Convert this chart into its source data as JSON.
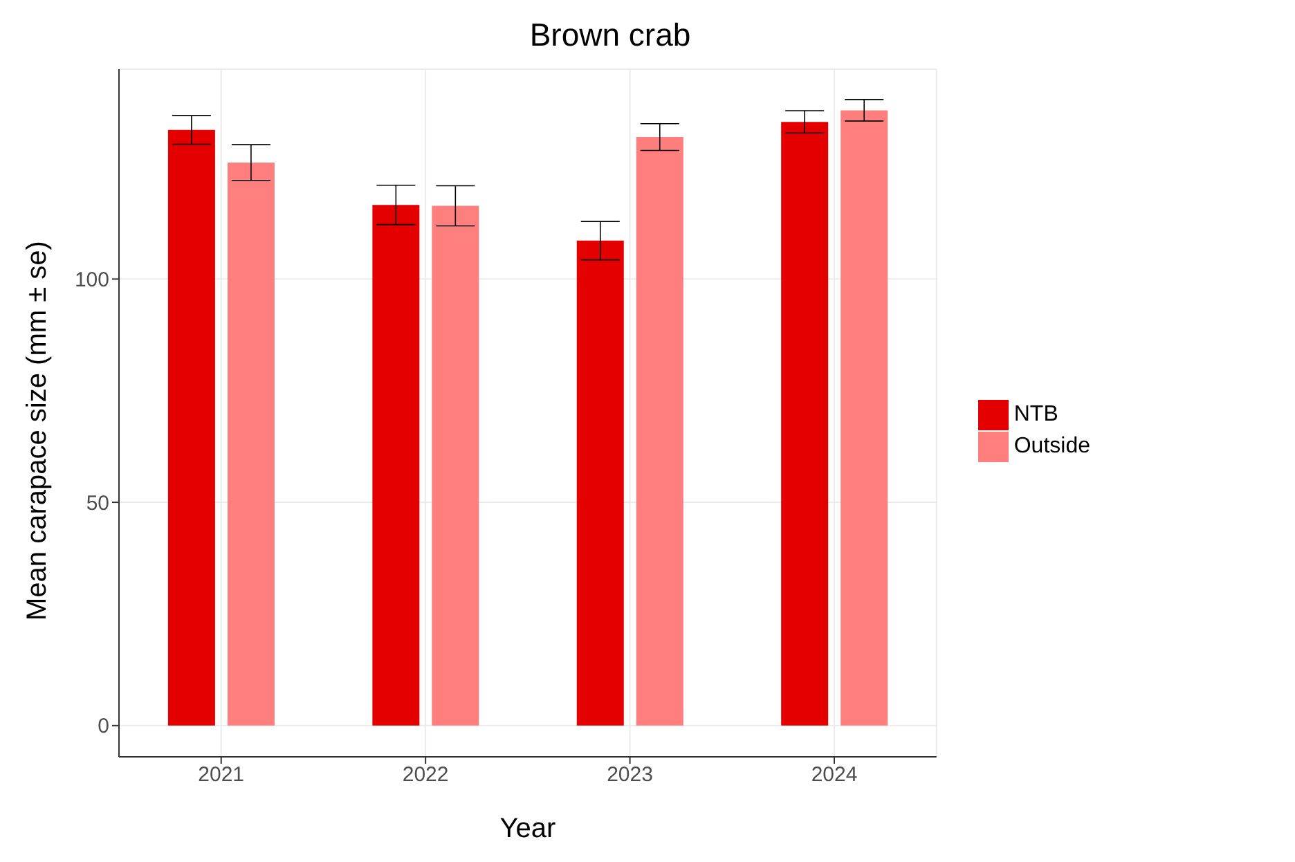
{
  "chart_data": {
    "type": "bar",
    "title": "Brown crab",
    "xlabel": "Year",
    "ylabel": "Mean carapace size (mm ± se)",
    "categories": [
      "2021",
      "2022",
      "2023",
      "2024"
    ],
    "series": [
      {
        "name": "NTB",
        "color": "#e50000",
        "values": [
          133.4,
          116.6,
          108.6,
          135.2
        ],
        "errors": [
          3.2,
          4.4,
          4.3,
          2.5
        ]
      },
      {
        "name": "Outside",
        "color": "#ff7f7f",
        "values": [
          126.1,
          116.4,
          131.8,
          137.8
        ],
        "errors": [
          4,
          4.5,
          3,
          2.4
        ]
      }
    ],
    "ylim": [
      -7,
      147
    ],
    "yticks": [
      0,
      50,
      100
    ],
    "grid": true,
    "legend": "right"
  }
}
